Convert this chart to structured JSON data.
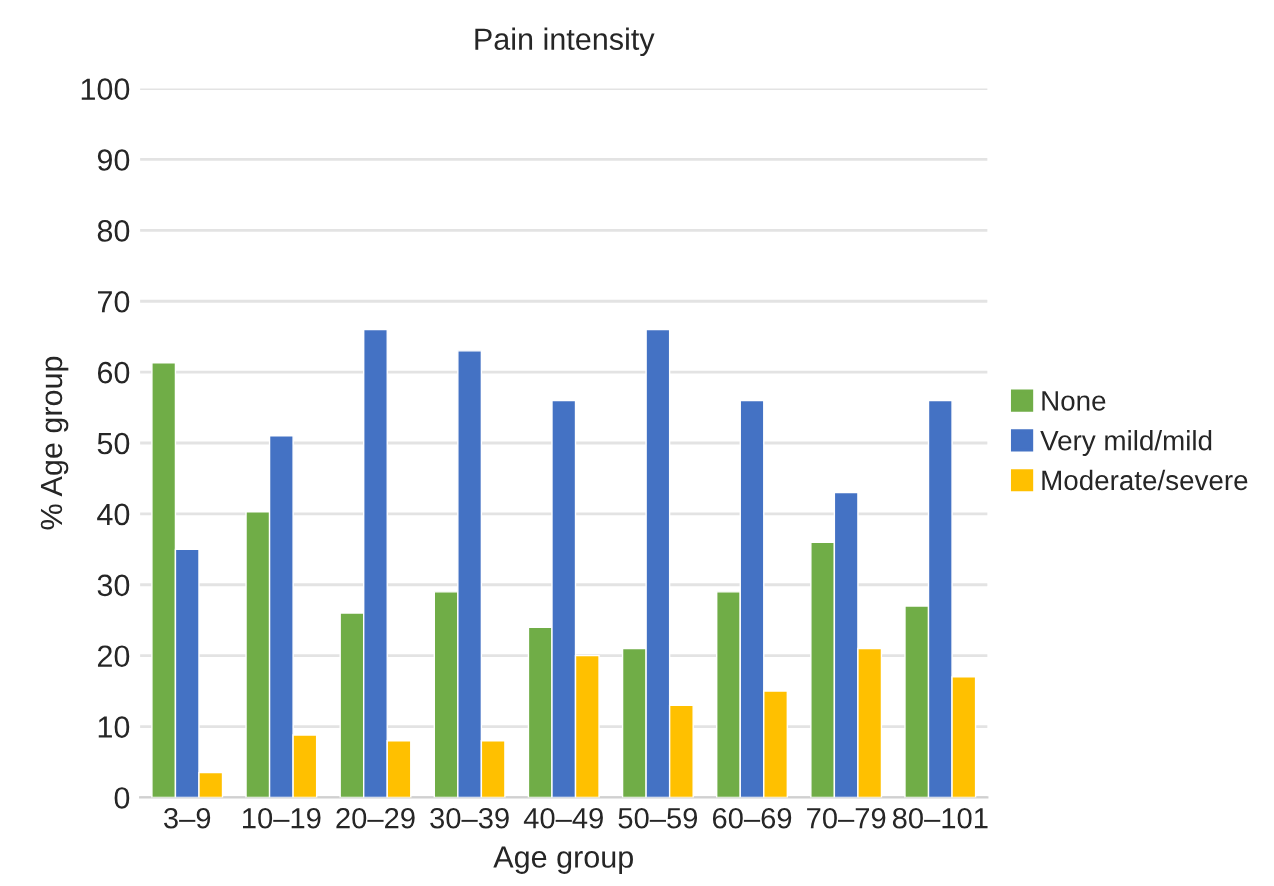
{
  "chart_data": {
    "type": "bar",
    "title": "Pain intensity",
    "xlabel": "Age group",
    "ylabel": "% Age group",
    "categories": [
      "3–9",
      "10–19",
      "20–29",
      "30–39",
      "40–49",
      "50–59",
      "60–69",
      "70–79",
      "80–101"
    ],
    "series": [
      {
        "name": "None",
        "color": "#70ad47",
        "values": [
          61.3,
          40.3,
          26,
          29,
          24,
          21,
          29,
          36,
          27
        ]
      },
      {
        "name": "Very mild/mild",
        "color": "#4472c4",
        "values": [
          35,
          51,
          66,
          63,
          56,
          66,
          56,
          43,
          56
        ]
      },
      {
        "name": "Moderate/severe",
        "color": "#ffc000",
        "values": [
          3.5,
          8.8,
          8,
          8,
          20,
          13,
          15,
          21,
          17
        ]
      }
    ],
    "ylim": [
      0,
      100
    ],
    "yticks": [
      0,
      10,
      20,
      30,
      40,
      50,
      60,
      70,
      80,
      90,
      100
    ],
    "grid": "y",
    "legend": "right"
  }
}
